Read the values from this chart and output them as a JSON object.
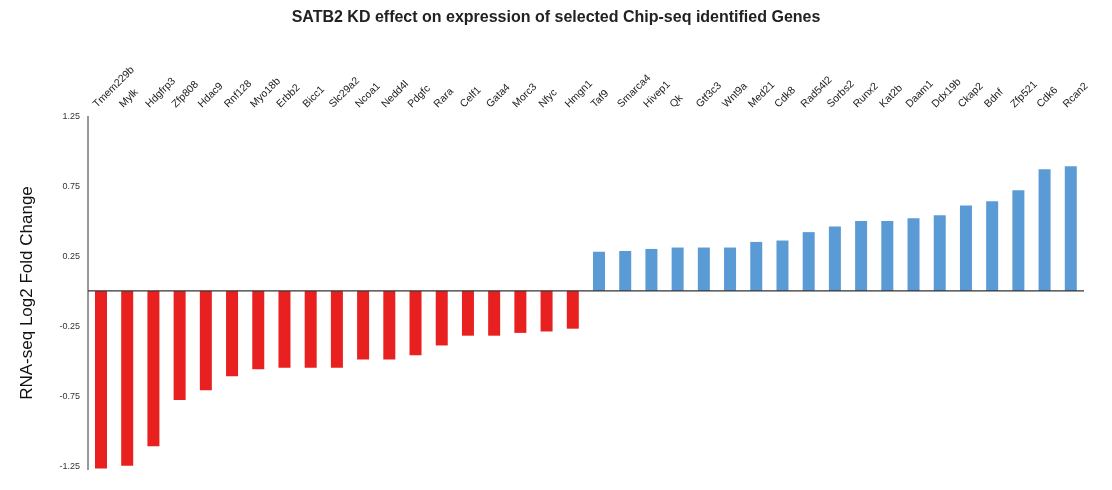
{
  "chart_data": {
    "type": "bar",
    "title": "SATB2 KD effect on expression of selected Chip-seq identified Genes",
    "ylabel": "RNA-seq Log2 Fold Change",
    "categories": [
      "Tmem229b",
      "Mylk",
      "Hdgfrp3",
      "Zfp808",
      "Hdac9",
      "Rnf128",
      "Myo18b",
      "Erbb2",
      "Bicc1",
      "Slc29a2",
      "Ncoa1",
      "Nedd4l",
      "Pdgfc",
      "Rara",
      "Celf1",
      "Gata4",
      "Morc3",
      "Nfyc",
      "Hmgn1",
      "Taf9",
      "Smarca4",
      "Hivep1",
      "Qk",
      "Gtf3c3",
      "Wnt9a",
      "Med21",
      "Cdk8",
      "Rad54l2",
      "Sorbs2",
      "Runx2",
      "Kat2b",
      "Daam1",
      "Ddx19b",
      "Ckap2",
      "Bdnf",
      "Zfp521",
      "Cdk6",
      "Rcan2"
    ],
    "values": [
      -1.27,
      -1.25,
      -1.11,
      -0.78,
      -0.71,
      -0.61,
      -0.56,
      -0.55,
      -0.55,
      -0.55,
      -0.49,
      -0.49,
      -0.46,
      -0.39,
      -0.32,
      -0.32,
      -0.3,
      -0.29,
      -0.27,
      0.28,
      0.285,
      0.3,
      0.31,
      0.31,
      0.31,
      0.35,
      0.36,
      0.42,
      0.46,
      0.5,
      0.5,
      0.52,
      0.54,
      0.61,
      0.64,
      0.72,
      0.87,
      0.89
    ],
    "colors": [
      "#e8201f",
      "#e8201f",
      "#e8201f",
      "#e8201f",
      "#e8201f",
      "#e8201f",
      "#e8201f",
      "#e8201f",
      "#e8201f",
      "#e8201f",
      "#e8201f",
      "#e8201f",
      "#e8201f",
      "#e8201f",
      "#e8201f",
      "#e8201f",
      "#e8201f",
      "#e8201f",
      "#e8201f",
      "#5b9bd5",
      "#5b9bd5",
      "#5b9bd5",
      "#5b9bd5",
      "#5b9bd5",
      "#5b9bd5",
      "#5b9bd5",
      "#5b9bd5",
      "#5b9bd5",
      "#5b9bd5",
      "#5b9bd5",
      "#5b9bd5",
      "#5b9bd5",
      "#5b9bd5",
      "#5b9bd5",
      "#5b9bd5",
      "#5b9bd5",
      "#5b9bd5",
      "#5b9bd5"
    ],
    "ylim": [
      -1.28,
      1.25
    ],
    "yticks": [
      1.25,
      0.75,
      0.25,
      -0.25,
      -0.75,
      -1.25
    ],
    "grid": false,
    "legend": false
  }
}
